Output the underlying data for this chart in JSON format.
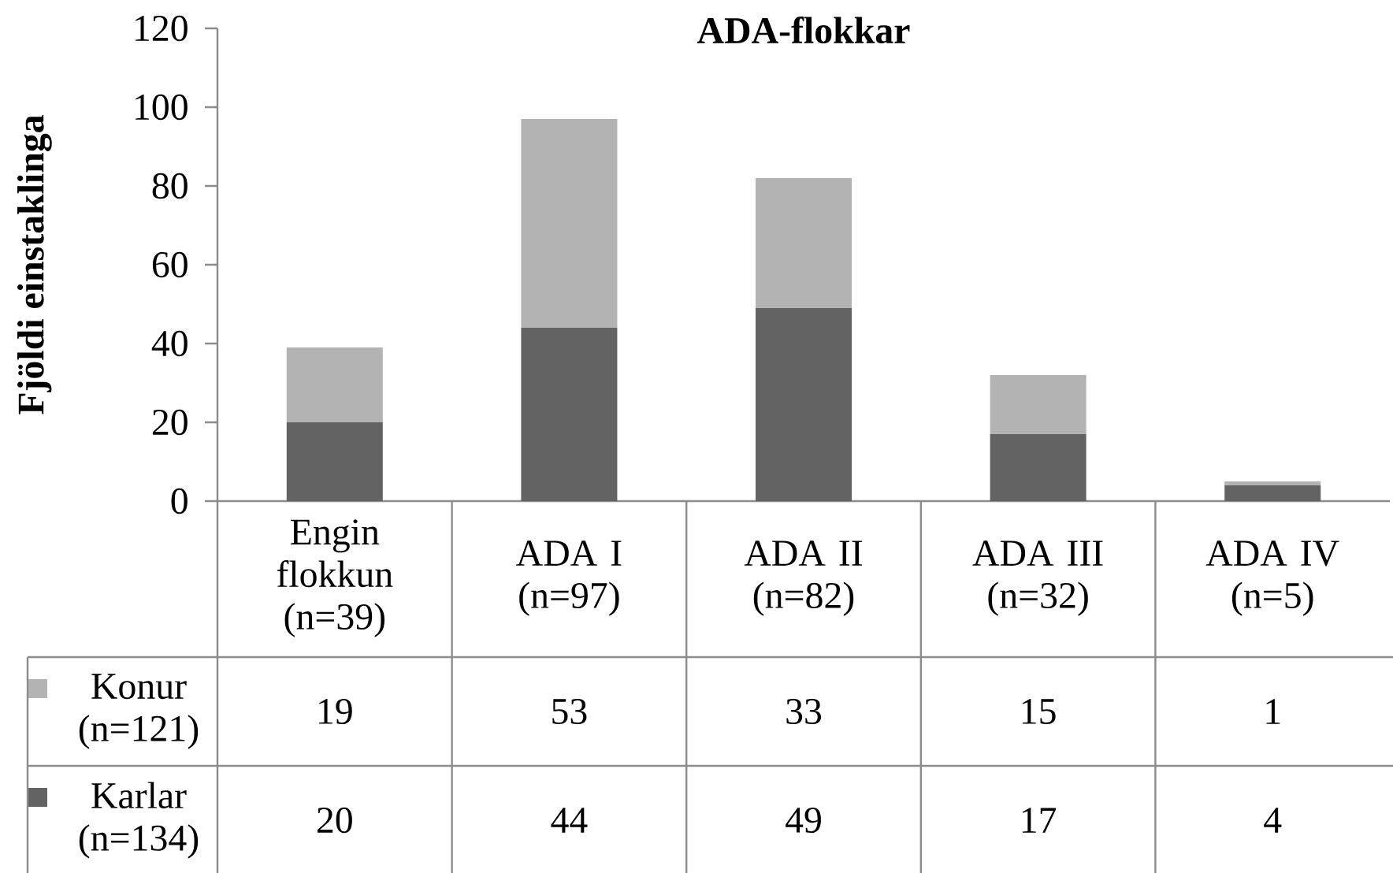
{
  "chart_data": {
    "type": "bar",
    "title": "ADA-flokkar",
    "ylabel": "Fjöldi einstaklinga",
    "categories": [
      "Engin flokkun (n=39)",
      "ADA I (n=97)",
      "ADA II (n=82)",
      "ADA III (n=32)",
      "ADA IV (n=5)"
    ],
    "stacked": true,
    "series": [
      {
        "name": "Karlar (n=134)",
        "color": "#636363",
        "values": [
          20,
          44,
          49,
          17,
          4
        ]
      },
      {
        "name": "Konur (n=121)",
        "color": "#b3b3b3",
        "values": [
          19,
          53,
          33,
          15,
          1
        ]
      }
    ],
    "ylim": [
      0,
      120
    ],
    "yticks": [
      0,
      20,
      40,
      60,
      80,
      100,
      120
    ],
    "data_labels": true,
    "legend": "bottom"
  }
}
